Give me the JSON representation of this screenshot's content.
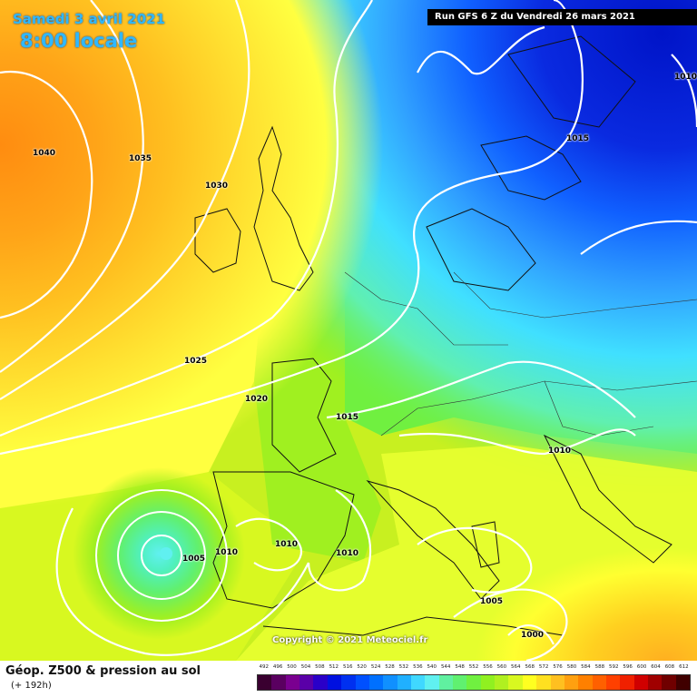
{
  "header": {
    "date": "Samedi 3 avril 2021",
    "time": "8:00 locale",
    "run": "Run GFS 6 Z du Vendredi 26 mars 2021"
  },
  "copyright": "Copyright © 2021 Meteociel.fr",
  "isobar_labels": [
    "1040",
    "1035",
    "1030",
    "1025",
    "1020",
    "1015",
    "1015",
    "1010",
    "1010",
    "1010",
    "1010",
    "1010",
    "1005",
    "1005",
    "1000"
  ],
  "legend": {
    "title": "Géop. Z500 & pression au sol",
    "subtitle": "(+ 192h)",
    "scale_values": [
      "492",
      "496",
      "500",
      "504",
      "508",
      "512",
      "516",
      "520",
      "524",
      "528",
      "532",
      "536",
      "540",
      "544",
      "548",
      "552",
      "556",
      "560",
      "564",
      "568",
      "572",
      "576",
      "580",
      "584",
      "588",
      "592",
      "596",
      "600",
      "604",
      "608",
      "612"
    ],
    "scale_colors": [
      "#3a0030",
      "#5a0060",
      "#7a0090",
      "#5a00a8",
      "#2a00c8",
      "#0010e0",
      "#0030f0",
      "#0050ff",
      "#0070ff",
      "#1090ff",
      "#20b0ff",
      "#40d8ff",
      "#60f0f0",
      "#60f0a0",
      "#60f070",
      "#70f040",
      "#90f020",
      "#b0f020",
      "#d8f820",
      "#ffff20",
      "#ffe020",
      "#ffc020",
      "#ffa010",
      "#ff8000",
      "#ff6000",
      "#ff4000",
      "#f02000",
      "#d00000",
      "#a00000",
      "#700000",
      "#400000"
    ]
  },
  "colors": {
    "deep_blue": "#0a2ad8",
    "blue": "#1060ff",
    "cyan": "#40e0ff",
    "green": "#70f040",
    "yellow": "#ffff40",
    "orange": "#ff8c10"
  }
}
